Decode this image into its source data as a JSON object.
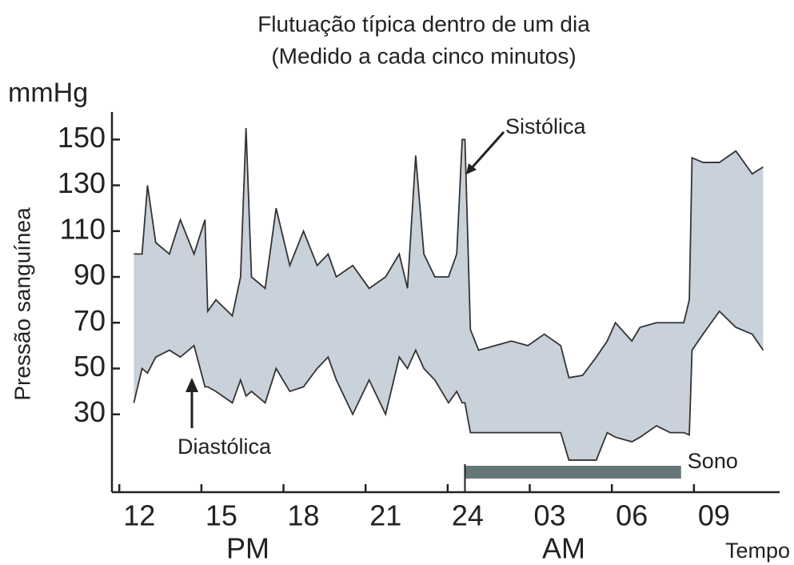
{
  "chart_data": {
    "type": "line",
    "title": "Flutuação típica dentro de um dia",
    "subtitle": "(Medido a cada cinco minutos)",
    "y_unit": "mmHg",
    "y_label": "Pressão sanguínea",
    "x_label": "Tempo",
    "period_labels": [
      "PM",
      "AM"
    ],
    "x": [
      11.8,
      12.1,
      12.3,
      12.6,
      13.1,
      13.5,
      14.0,
      14.4,
      14.5,
      14.8,
      15.4,
      15.7,
      15.9,
      16.1,
      16.6,
      17.0,
      17.5,
      18.0,
      18.5,
      18.9,
      19.2,
      19.8,
      20.4,
      21.0,
      21.5,
      21.8,
      22.1,
      22.4,
      22.8,
      23.3,
      23.6,
      23.8,
      23.9,
      24.1,
      24.4,
      25.0,
      25.6,
      26.2,
      26.8,
      27.4,
      27.7,
      28.2,
      28.7,
      29.1,
      29.4,
      30.0,
      30.3,
      30.9,
      31.4,
      31.9,
      32.1,
      32.2,
      32.6,
      33.2,
      33.8,
      34.4,
      34.8
    ],
    "series": [
      {
        "name": "Sistólica",
        "color": "#333333",
        "values": [
          100,
          100,
          130,
          105,
          100,
          115,
          100,
          115,
          75,
          80,
          73,
          90,
          155,
          90,
          85,
          120,
          95,
          110,
          95,
          100,
          90,
          95,
          85,
          90,
          100,
          85,
          143,
          100,
          90,
          90,
          100,
          150,
          150,
          67,
          58,
          60,
          62,
          60,
          65,
          60,
          46,
          47,
          55,
          62,
          70,
          62,
          68,
          70,
          70,
          70,
          80,
          142,
          140,
          140,
          145,
          135,
          138
        ]
      },
      {
        "name": "Diastólica",
        "color": "#333333",
        "values": [
          35,
          50,
          48,
          55,
          58,
          55,
          60,
          42,
          42,
          40,
          35,
          45,
          38,
          40,
          35,
          50,
          40,
          42,
          50,
          55,
          45,
          30,
          45,
          30,
          55,
          50,
          58,
          50,
          45,
          35,
          40,
          35,
          35,
          22,
          22,
          22,
          22,
          22,
          22,
          22,
          10,
          10,
          10,
          22,
          20,
          18,
          20,
          25,
          22,
          22,
          21,
          58,
          65,
          75,
          68,
          65,
          58
        ]
      }
    ],
    "band_color": "#c9d1da",
    "sleep": {
      "label": "Sono",
      "start": 23.9,
      "end": 31.8,
      "color": "#66777a"
    },
    "xlim": [
      11,
      35.4
    ],
    "xticks": [
      12,
      15,
      18,
      21,
      24,
      {
        "value": 27,
        "label": "03"
      },
      {
        "value": 30,
        "label": "06"
      },
      {
        "value": 33,
        "label": "09"
      }
    ],
    "ylim": [
      -4,
      162
    ],
    "yticks": [
      30,
      50,
      70,
      90,
      110,
      130,
      150
    ]
  }
}
